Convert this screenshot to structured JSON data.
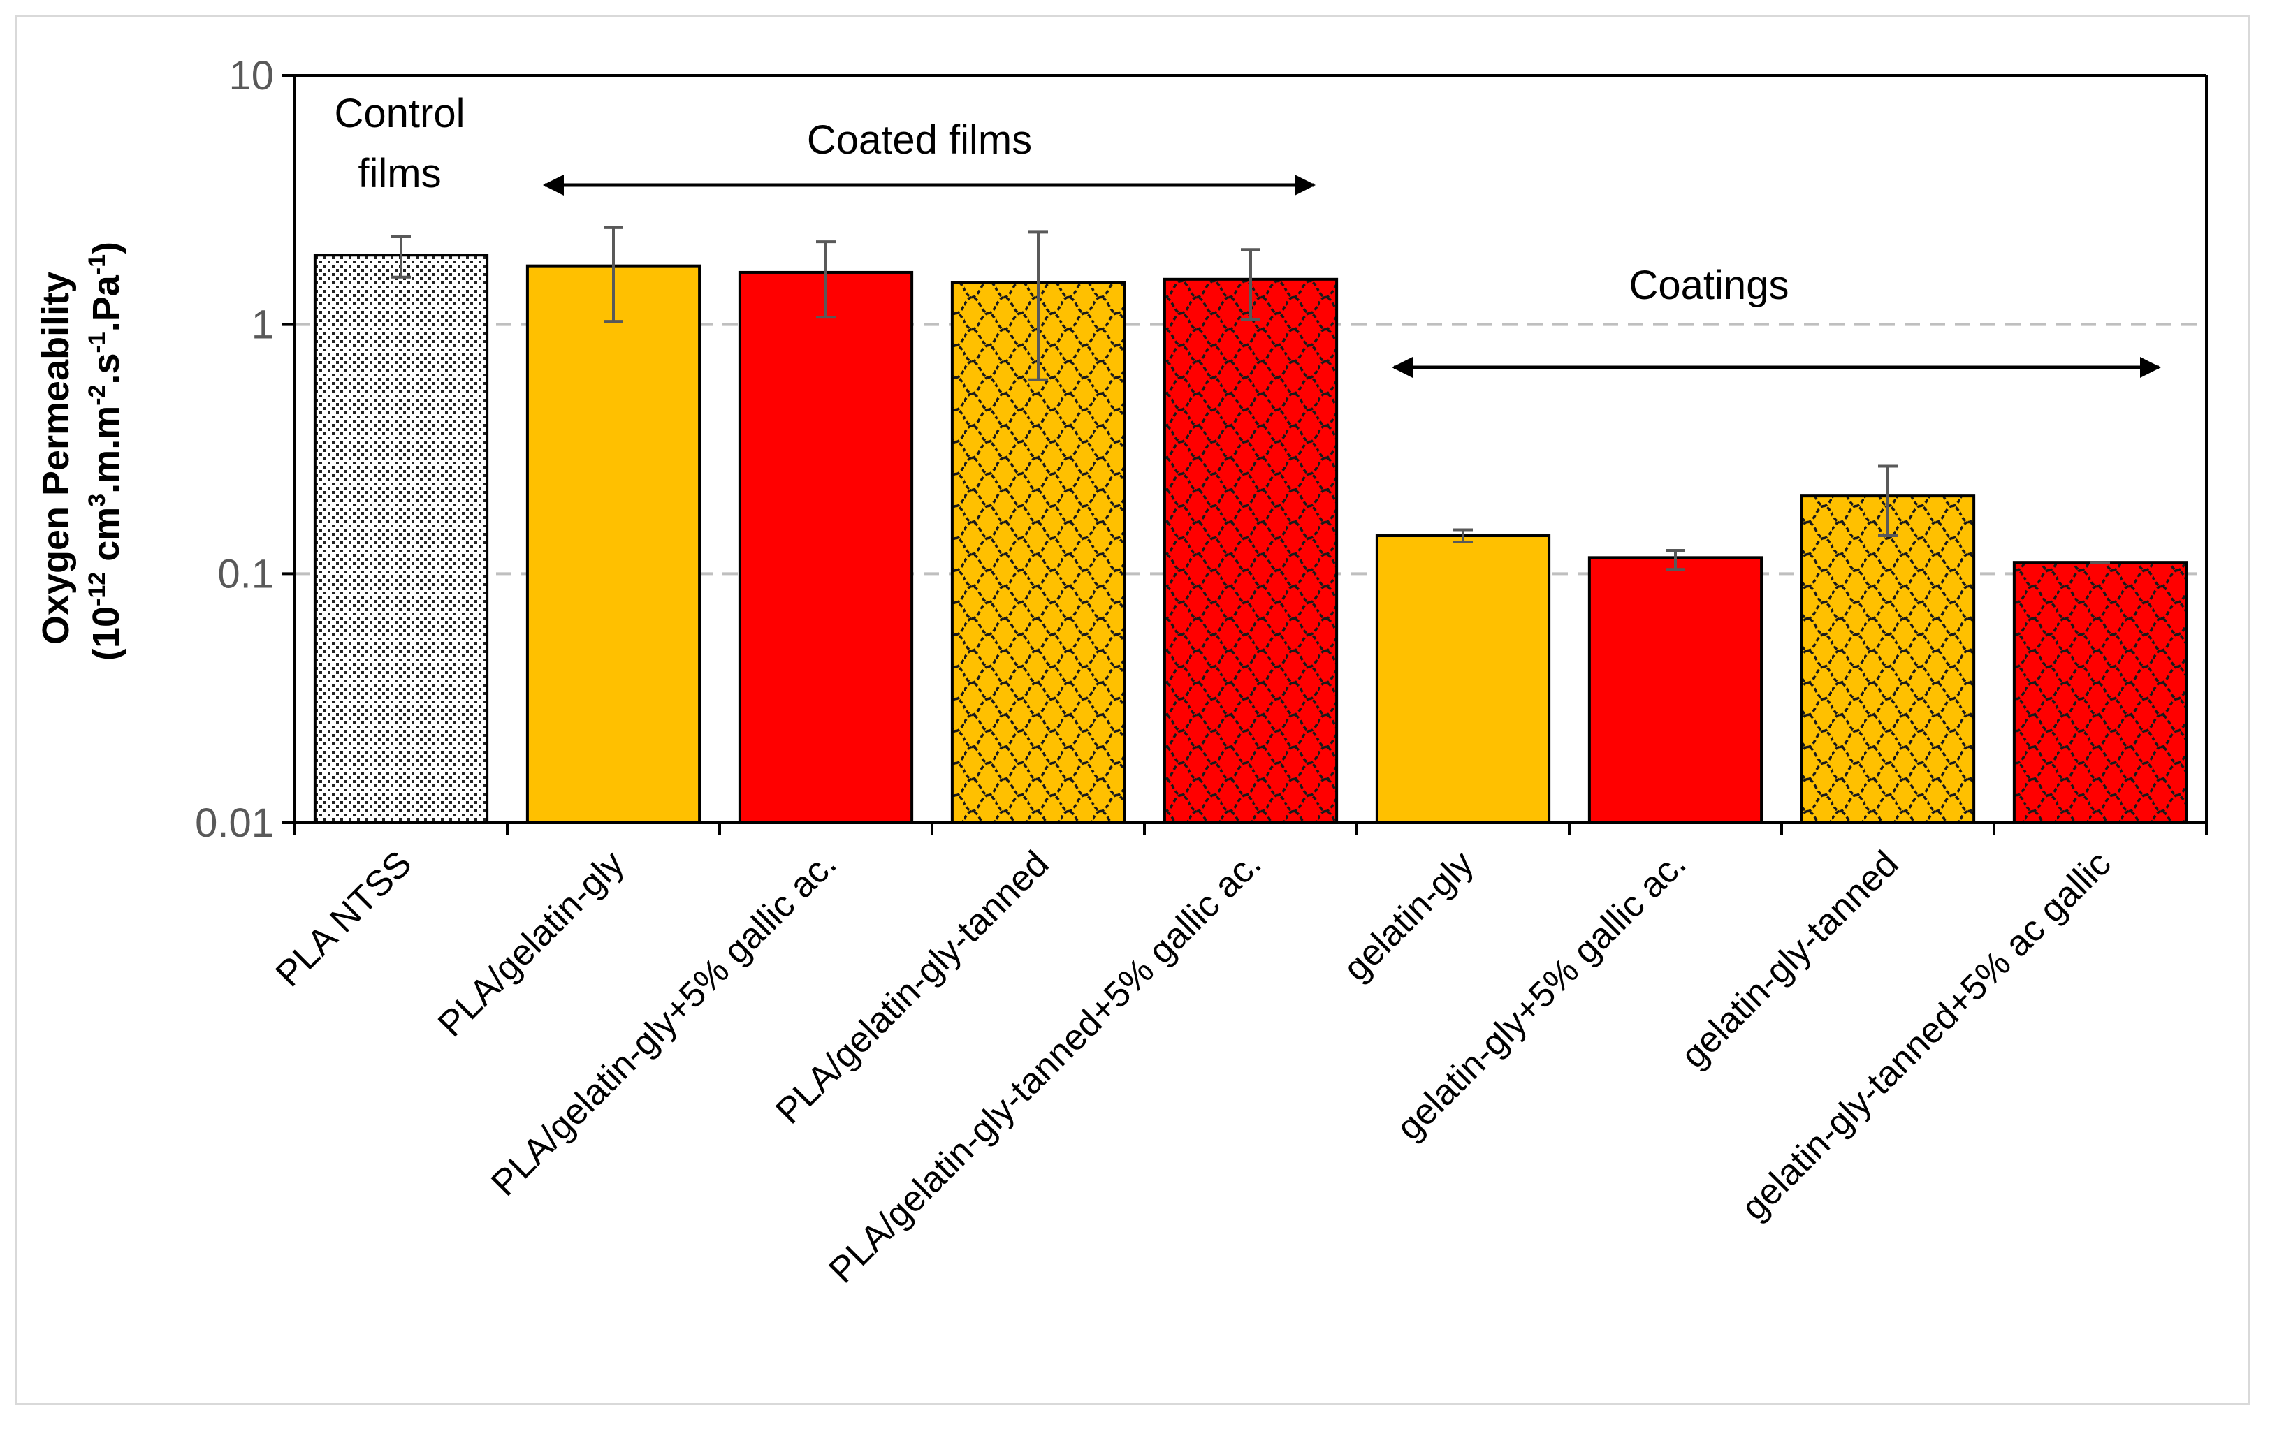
{
  "chart_data": {
    "type": "bar",
    "yscale": "log",
    "ylim": [
      0.01,
      10
    ],
    "ylabel_line1": "Oxygen Permeability",
    "ylabel_line2": {
      "base": "(10",
      "exp1": "-12",
      "mid1": " cm",
      "exp2": "3",
      "mid2": ".m.m",
      "exp3": "-2",
      "mid3": ".s",
      "exp4": "-1",
      "mid4": ".Pa",
      "exp5": "-1",
      "end": ")"
    },
    "yticks": [
      {
        "value": 10,
        "label": "10"
      },
      {
        "value": 1,
        "label": "1"
      },
      {
        "value": 0.1,
        "label": "0.1"
      },
      {
        "value": 0.01,
        "label": "0.01"
      }
    ],
    "gridlines": [
      1,
      0.1
    ],
    "categories": [
      {
        "label": "PLA NTSS",
        "value": 1.9,
        "err_low": 1.55,
        "err_high": 2.25,
        "fill": "dots"
      },
      {
        "label": "PLA/gelatin-gly",
        "value": 1.72,
        "err_low": 1.03,
        "err_high": 2.45,
        "fill": "orange"
      },
      {
        "label": "PLA/gelatin-gly+5% gallic ac.",
        "value": 1.62,
        "err_low": 1.07,
        "err_high": 2.15,
        "fill": "red"
      },
      {
        "label": "PLA/gelatin-gly-tanned",
        "value": 1.47,
        "err_low": 0.6,
        "err_high": 2.35,
        "fill": "orange-pattern"
      },
      {
        "label": "PLA/gelatin-gly-tanned+5% gallic ac.",
        "value": 1.52,
        "err_low": 1.05,
        "err_high": 2.0,
        "fill": "red-pattern"
      },
      {
        "label": "gelatin-gly",
        "value": 0.142,
        "err_low": 0.134,
        "err_high": 0.15,
        "fill": "orange"
      },
      {
        "label": "gelatin-gly+5% gallic ac.",
        "value": 0.116,
        "err_low": 0.104,
        "err_high": 0.124,
        "fill": "red"
      },
      {
        "label": "gelatin-gly-tanned",
        "value": 0.205,
        "err_low": 0.142,
        "err_high": 0.27,
        "fill": "orange-pattern"
      },
      {
        "label": "gelatin-gly-tanned+5% ac gallic",
        "value": 0.111,
        "err_low": 0.111,
        "err_high": 0.111,
        "fill": "red-pattern"
      }
    ],
    "annotations": {
      "control_line1": "Control",
      "control_line2": "films",
      "coated": "Coated films",
      "coatings": "Coatings"
    },
    "colors": {
      "orange": "#ffc000",
      "red": "#ff0000",
      "pattern_line": "#1a1a1a",
      "axis": "#000000",
      "tick_label": "#595959",
      "grid": "#bfbfbf",
      "errorbar": "#595959"
    }
  }
}
